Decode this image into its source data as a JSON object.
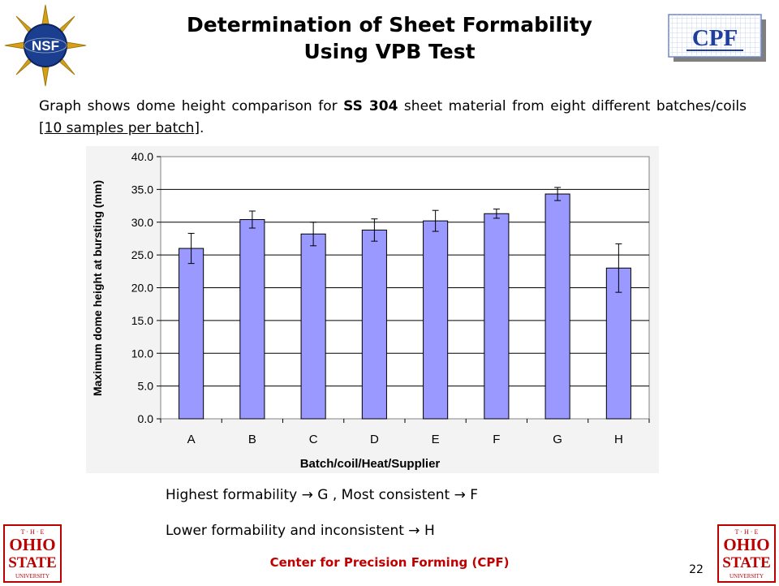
{
  "slide": {
    "title_line1": "Determination of Sheet Formability",
    "title_line2": "Using VPB Test",
    "intro": {
      "part1": "Graph shows dome height comparison for ",
      "material": "SS 304",
      "part2": " sheet material from eight different batches/coils [",
      "samples": "10 samples per batch",
      "part3": "]."
    },
    "conclusion1": {
      "part1": "Highest formability ",
      "part2": " G , Most consistent ",
      "part3": " F"
    },
    "conclusion2": {
      "part1": "Lower formability and inconsistent ",
      "part2": " H"
    },
    "arrow": "→",
    "footer": "Center for Precision Forming (CPF)",
    "page_number": "22"
  },
  "logos": {
    "nsf_text": "NSF",
    "cpf_text": "CPF",
    "osu_lines": [
      "T · H · E",
      "OHIO",
      "STATE",
      "UNIVERSITY"
    ]
  },
  "colors": {
    "bar_fill": "#9999ff",
    "bar_stroke": "#000000",
    "plot_bg": "#ffffff",
    "chart_bg": "#f3f3f3",
    "footer": "#c00000",
    "osu_red": "#bb0000",
    "cpf_blue": "#1f3f9f",
    "nsf_blue": "#1a3f8f",
    "nsf_gold": "#d4a017"
  },
  "chart_data": {
    "type": "bar",
    "categories": [
      "A",
      "B",
      "C",
      "D",
      "E",
      "F",
      "G",
      "H"
    ],
    "values": [
      26.0,
      30.4,
      28.2,
      28.8,
      30.2,
      31.3,
      34.3,
      23.0
    ],
    "error": [
      2.3,
      1.3,
      1.8,
      1.7,
      1.6,
      0.7,
      1.0,
      3.7
    ],
    "xlabel": "Batch/coil/Heat/Supplier",
    "ylabel": "Maximum dome height at bursting (mm)",
    "ylim": [
      0,
      40
    ],
    "yticks": [
      "0.0",
      "5.0",
      "10.0",
      "15.0",
      "20.0",
      "25.0",
      "30.0",
      "35.0",
      "40.0"
    ],
    "grid": true,
    "legend": "none"
  }
}
